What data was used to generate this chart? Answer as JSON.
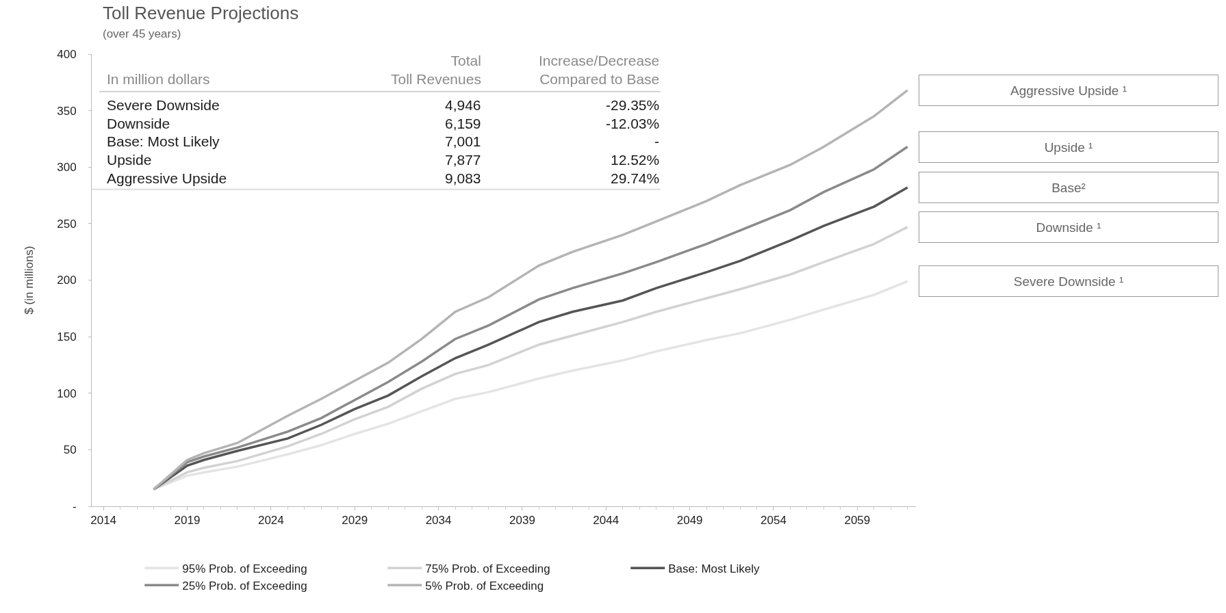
{
  "chart_data": {
    "type": "line",
    "title": "Toll Revenue Projections",
    "subtitle": "(over 45 years)",
    "ylabel": "$ (in millions)",
    "x": [
      2017,
      2019,
      2020,
      2022,
      2025,
      2027,
      2029,
      2031,
      2033,
      2035,
      2037,
      2040,
      2042,
      2045,
      2047,
      2050,
      2052,
      2055,
      2057,
      2060,
      2062
    ],
    "series": [
      {
        "name": "95% Prob. of Exceeding",
        "color": "#e4e4e4",
        "values": [
          15,
          27,
          30,
          35,
          46,
          54,
          64,
          73,
          84,
          95,
          101,
          113,
          120,
          129,
          137,
          147,
          153,
          165,
          174,
          187,
          199
        ]
      },
      {
        "name": "75% Prob. of Exceeding",
        "color": "#d2d2d2",
        "values": [
          15,
          30,
          34,
          40,
          53,
          64,
          77,
          88,
          104,
          117,
          125,
          143,
          151,
          163,
          172,
          184,
          192,
          205,
          216,
          232,
          247
        ]
      },
      {
        "name": "Base: Most Likely",
        "color": "#555555",
        "values": [
          15,
          36,
          41,
          49,
          60,
          72,
          86,
          98,
          115,
          131,
          143,
          163,
          172,
          182,
          193,
          207,
          217,
          235,
          248,
          265,
          282
        ]
      },
      {
        "name": "25% Prob. of Exceeding",
        "color": "#8a8a8a",
        "values": [
          15,
          39,
          44,
          52,
          66,
          78,
          94,
          110,
          128,
          148,
          160,
          183,
          193,
          206,
          216,
          232,
          244,
          262,
          278,
          298,
          318
        ]
      },
      {
        "name": "5% Prob. of Exceeding",
        "color": "#b4b4b4",
        "values": [
          15,
          41,
          47,
          56,
          80,
          95,
          111,
          127,
          148,
          172,
          185,
          213,
          225,
          240,
          252,
          270,
          284,
          302,
          318,
          345,
          368
        ]
      }
    ],
    "xlim": [
      2013.3,
      2062.5
    ],
    "xticks": [
      2014,
      2019,
      2024,
      2029,
      2034,
      2039,
      2044,
      2049,
      2054,
      2059
    ],
    "ylim": [
      0,
      400
    ],
    "yticks": [
      {
        "value": 0,
        "label": "-"
      },
      50,
      100,
      150,
      200,
      250,
      300,
      350,
      400
    ],
    "grid": false,
    "legend": "bottom",
    "marker": "none",
    "line_style": "solid",
    "annotations": [
      "In million dollars",
      "Total\nToll Revenues",
      "Increase/Decrease\nCompared to Base",
      "Severe Downside",
      "4,946",
      "-29.35%",
      "Downside",
      "6,159",
      "-12.03%",
      "Base: Most Likely",
      "7,001",
      "-",
      "Upside",
      "7,877",
      "12.52%",
      "Aggressive Upside",
      "9,083",
      "29.74%",
      "Aggressive Upside ¹",
      "Upside ¹",
      "Base²",
      "Downside ¹",
      "Severe Downside ¹"
    ]
  }
}
